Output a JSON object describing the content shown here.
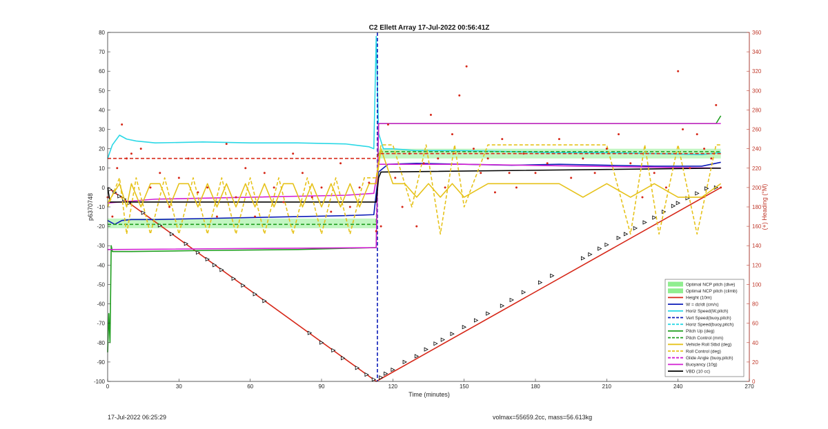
{
  "footer": {
    "timestamp": "17-Jul-2022 06:25:29",
    "mass_info": "volmax=55659.2cc, mass=56.613kg"
  },
  "chart_data": {
    "type": "line",
    "title": "C2 Ellett Array 17-Jul-2022 00:56:41Z",
    "xlabel": "Time (minutes)",
    "ylabel": "p6370748",
    "y2label": "(+) Heading (°M)",
    "xlim": [
      0,
      270
    ],
    "ylim": [
      -100,
      80
    ],
    "y2lim": [
      0,
      360
    ],
    "xticks": [
      0,
      30,
      60,
      90,
      120,
      150,
      180,
      210,
      240,
      270
    ],
    "yticks": [
      -100,
      -90,
      -80,
      -70,
      -60,
      -50,
      -40,
      -30,
      -20,
      -10,
      0,
      10,
      20,
      30,
      40,
      50,
      60,
      70,
      80
    ],
    "y2ticks": [
      0,
      20,
      40,
      60,
      80,
      100,
      120,
      140,
      160,
      180,
      200,
      220,
      240,
      260,
      280,
      300,
      320,
      340,
      360
    ],
    "grid": false,
    "legend_position": "bottom-right",
    "colors": {
      "red": "#d62718",
      "blue": "#0a1ab8",
      "cyan": "#2ad8e6",
      "green": "#1e9e1e",
      "yellow": "#e6c21a",
      "magenta": "#d21ed2",
      "black": "#000000",
      "band": "#90ee90"
    },
    "legend": [
      {
        "label": "Optimal NCP pitch (dive)",
        "style": "patch",
        "color": "#90ee90"
      },
      {
        "label": "Optimal NCP pitch (climb)",
        "style": "patch",
        "color": "#90ee90"
      },
      {
        "label": "Height (10m)",
        "style": "solid",
        "color": "#d62718"
      },
      {
        "label": "W = dz/dt (cm/s)",
        "style": "solid",
        "color": "#0a1ab8"
      },
      {
        "label": "Horiz Speed(W,pitch)",
        "style": "solid",
        "color": "#2ad8e6"
      },
      {
        "label": "Vert Speed(buoy,pitch)",
        "style": "dashed",
        "color": "#0a1ab8"
      },
      {
        "label": "Horiz Speed(buoy,pitch)",
        "style": "dashed",
        "color": "#2ad8e6"
      },
      {
        "label": "Pitch Up (deg)",
        "style": "solid",
        "color": "#1e9e1e"
      },
      {
        "label": "Pitch Control (mm)",
        "style": "dashed",
        "color": "#1e9e1e"
      },
      {
        "label": "Vehicle Roll Stbd (deg)",
        "style": "solid",
        "color": "#e6c21a"
      },
      {
        "label": "Roll Control (deg)",
        "style": "dashed",
        "color": "#e6c21a"
      },
      {
        "label": "Glide Angle (buoy,pitch)",
        "style": "dashed",
        "color": "#d21ed2"
      },
      {
        "label": "Buoyancy (10g)",
        "style": "solid",
        "color": "#d21ed2"
      },
      {
        "label": "VBD (10 cc)",
        "style": "solid",
        "color": "#000000"
      }
    ],
    "bands": [
      {
        "name": "Optimal NCP pitch (dive)",
        "x": [
          0,
          113
        ],
        "y": [
          -21,
          -16
        ]
      },
      {
        "name": "Optimal NCP pitch (climb)",
        "x": [
          114,
          258
        ],
        "y": [
          15,
          20
        ]
      }
    ],
    "series": [
      {
        "name": "Height (10m)",
        "color": "#d62718",
        "style": "solid",
        "x": [
          0,
          113,
          258
        ],
        "y": [
          0,
          -100,
          0
        ]
      },
      {
        "name": "Height (10m) markers",
        "color": "#000000",
        "style": "markers",
        "x": [
          1,
          3,
          5,
          7,
          9,
          15,
          22,
          27,
          33,
          38,
          42,
          45,
          48,
          53,
          57,
          62,
          66,
          85,
          90,
          95,
          99,
          105,
          109,
          112,
          115,
          117,
          120,
          125,
          130,
          134,
          138,
          141,
          145,
          150,
          155,
          160,
          166,
          170,
          175,
          182,
          187,
          200,
          203,
          207,
          210,
          215,
          218,
          222,
          226,
          230,
          234,
          238,
          240,
          244,
          248,
          252,
          256
        ],
        "y": [
          -1,
          -2.5,
          -4.5,
          -6,
          -8,
          -13,
          -19.5,
          -24,
          -29,
          -33.5,
          -37,
          -40,
          -42.5,
          -47,
          -50.5,
          -55,
          -58.5,
          -75,
          -80,
          -84,
          -88,
          -93,
          -96.5,
          -99,
          -98,
          -96,
          -94,
          -90,
          -87,
          -83.5,
          -80.5,
          -78.5,
          -75.5,
          -72,
          -68.5,
          -65,
          -61,
          -58,
          -54,
          -49,
          -45.5,
          -36.5,
          -34.5,
          -31.5,
          -29.5,
          -26,
          -24,
          -21,
          -18,
          -15.5,
          -12.5,
          -9.5,
          -8,
          -5.5,
          -3,
          -0.5,
          0
        ]
      },
      {
        "name": "W = dz/dt (cm/s)",
        "color": "#0a1ab8",
        "style": "solid",
        "x": [
          0,
          3,
          6,
          10,
          20,
          40,
          60,
          80,
          100,
          112,
          114,
          118,
          130,
          150,
          170,
          190,
          210,
          230,
          250,
          258
        ],
        "y": [
          -17,
          -19,
          -17,
          -16.5,
          -16.5,
          -16,
          -15.5,
          -15,
          -14.5,
          -14,
          8,
          12,
          12.5,
          12,
          11.5,
          12,
          11.5,
          11,
          11,
          13
        ]
      },
      {
        "name": "Horiz Speed(W,pitch)",
        "color": "#2ad8e6",
        "style": "solid",
        "x": [
          0,
          2,
          5,
          8,
          12,
          20,
          40,
          60,
          80,
          100,
          110,
          112,
          113,
          114,
          116,
          120,
          130,
          150,
          170,
          190,
          210,
          230,
          250,
          258
        ],
        "y": [
          15,
          22,
          27,
          25,
          24,
          23,
          23.5,
          23,
          23,
          22.5,
          21,
          20,
          78,
          28,
          20,
          20,
          19,
          19,
          18.5,
          18,
          18,
          17.5,
          17,
          18
        ]
      },
      {
        "name": "Vert Speed(buoy,pitch)",
        "color": "#0a1ab8",
        "style": "dashed",
        "x": [
          113.5,
          113.5
        ],
        "y": [
          80,
          -100
        ]
      },
      {
        "name": "Pitch Up (deg)",
        "color": "#1e9e1e",
        "style": "solid",
        "x": [
          0,
          0.5,
          1,
          1.5,
          2,
          3,
          10,
          40,
          80,
          112,
          113,
          114,
          140,
          180,
          220,
          256,
          258
        ],
        "y": [
          -85,
          -65,
          -80,
          -30,
          -33,
          -33,
          -33,
          -32.5,
          -32,
          -31,
          -31,
          33,
          33,
          33,
          33,
          33,
          37
        ]
      },
      {
        "name": "Pitch Control (mm)",
        "color": "#1e9e1e",
        "style": "dashed",
        "x": [
          0,
          113,
          114,
          258
        ],
        "y": [
          -19,
          -19,
          18.5,
          18.5
        ]
      },
      {
        "name": "Buoyancy (10g)",
        "color": "#d21ed2",
        "style": "solid",
        "x": [
          0,
          113,
          114,
          258
        ],
        "y": [
          -32,
          -31,
          33,
          33
        ]
      },
      {
        "name": "Glide Angle (buoy,pitch)",
        "color": "#d21ed2",
        "style": "solid",
        "x": [
          0,
          20,
          60,
          100,
          112,
          114,
          150,
          200,
          258
        ],
        "y": [
          -8,
          -6,
          -5,
          -4,
          -3,
          12,
          12,
          11,
          10
        ]
      },
      {
        "name": "VBD (10 cc)",
        "color": "#000000",
        "style": "solid",
        "x": [
          0,
          1,
          113,
          114,
          115,
          258
        ],
        "y": [
          0,
          -7.5,
          -7.5,
          5,
          8,
          10
        ]
      },
      {
        "name": "Vehicle Roll Stbd (deg)",
        "color": "#e6c21a",
        "style": "solid",
        "x": [
          0,
          5,
          8,
          10,
          14,
          18,
          22,
          26,
          30,
          34,
          38,
          42,
          46,
          50,
          54,
          58,
          62,
          66,
          70,
          74,
          78,
          82,
          86,
          90,
          94,
          98,
          102,
          106,
          110,
          113,
          115,
          120,
          125,
          130,
          135,
          140,
          145,
          150,
          160,
          170,
          180,
          190,
          200,
          210,
          220,
          230,
          240,
          250,
          258
        ],
        "y": [
          -8,
          2,
          -10,
          2,
          -10,
          2,
          2,
          -10,
          2,
          2,
          -10,
          2,
          -10,
          2,
          -10,
          2,
          -10,
          2,
          -10,
          2,
          2,
          -10,
          2,
          -10,
          2,
          -10,
          2,
          -10,
          2,
          2,
          20,
          2,
          2,
          -5,
          2,
          -5,
          2,
          -5,
          2,
          2,
          2,
          2,
          -5,
          2,
          -5,
          2,
          -5,
          -5,
          2
        ]
      },
      {
        "name": "Roll Control (deg)",
        "color": "#e6c21a",
        "style": "dashed",
        "x": [
          0,
          5,
          8,
          12,
          18,
          24,
          30,
          36,
          42,
          48,
          54,
          60,
          66,
          72,
          78,
          84,
          90,
          96,
          102,
          108,
          113,
          115,
          120,
          128,
          134,
          140,
          146,
          150,
          160,
          170,
          180,
          190,
          200,
          210,
          220,
          226,
          232,
          240,
          248,
          256,
          258
        ],
        "y": [
          -10,
          5,
          -24,
          5,
          -24,
          5,
          -24,
          5,
          -24,
          5,
          -24,
          5,
          -24,
          5,
          -24,
          5,
          -24,
          5,
          -24,
          5,
          5,
          22,
          22,
          -10,
          22,
          -24,
          22,
          -10,
          22,
          22,
          22,
          22,
          22,
          22,
          -24,
          22,
          -24,
          22,
          -24,
          22,
          22
        ]
      },
      {
        "name": "Heading",
        "color": "#d62718",
        "style": "dotted",
        "axis": "right",
        "x": [
          0,
          2,
          4,
          6,
          8,
          10,
          14,
          18,
          22,
          26,
          30,
          34,
          38,
          42,
          46,
          50,
          54,
          58,
          62,
          66,
          70,
          74,
          78,
          82,
          86,
          90,
          94,
          98,
          102,
          106,
          110,
          113,
          115,
          118,
          121,
          124,
          127,
          130,
          133,
          136,
          139,
          142,
          145,
          148,
          151,
          154,
          157,
          160,
          163,
          166,
          169,
          172,
          175,
          180,
          185,
          190,
          195,
          200,
          205,
          210,
          215,
          220,
          225,
          230,
          235,
          240,
          242,
          245,
          248,
          251,
          254,
          256,
          258
        ],
        "y": [
          190,
          170,
          220,
          265,
          230,
          235,
          240,
          200,
          215,
          180,
          210,
          230,
          195,
          200,
          170,
          245,
          190,
          220,
          170,
          215,
          200,
          185,
          235,
          215,
          190,
          200,
          175,
          225,
          180,
          200,
          205,
          155,
          160,
          265,
          210,
          180,
          235,
          160,
          225,
          275,
          230,
          200,
          255,
          295,
          325,
          240,
          215,
          230,
          195,
          250,
          215,
          200,
          235,
          215,
          225,
          250,
          210,
          230,
          215,
          240,
          255,
          225,
          190,
          215,
          200,
          320,
          260,
          220,
          255,
          240,
          230,
          285,
          200
        ]
      },
      {
        "name": "Heading ref",
        "color": "#d62718",
        "style": "dashed",
        "axis": "right",
        "x": [
          0,
          113,
          114,
          258
        ],
        "y": [
          230,
          230,
          235,
          235
        ]
      }
    ]
  }
}
